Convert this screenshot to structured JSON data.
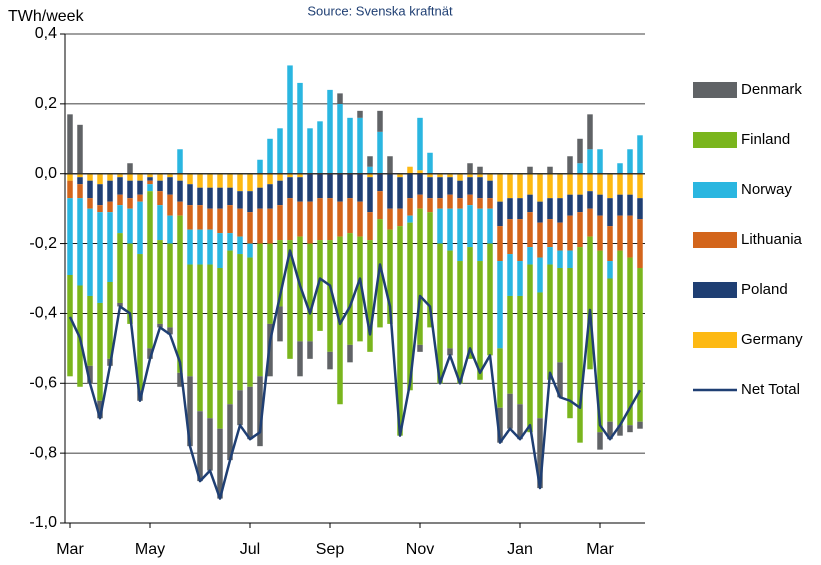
{
  "chart_data": {
    "type": "bar",
    "stacked": true,
    "y_label": "TWh/week",
    "subtitle": "Source: Svenska kraftnät",
    "categories": [
      "Mar",
      null,
      null,
      null,
      null,
      null,
      null,
      null,
      "May",
      null,
      null,
      null,
      null,
      null,
      null,
      null,
      null,
      null,
      "Jul",
      null,
      null,
      null,
      null,
      null,
      null,
      null,
      "Sep",
      null,
      null,
      null,
      null,
      null,
      null,
      null,
      null,
      "Nov",
      null,
      null,
      null,
      null,
      null,
      null,
      null,
      null,
      null,
      "Jan",
      null,
      null,
      null,
      null,
      null,
      null,
      null,
      "Mar",
      null,
      null,
      null,
      null
    ],
    "ylim": [
      -1.0,
      0.4
    ],
    "yticks": [
      {
        "value": 0.4,
        "label": "0,4"
      },
      {
        "value": 0.2,
        "label": "0,2"
      },
      {
        "value": 0,
        "label": "0,0"
      },
      {
        "value": -0.2,
        "label": "-0,2"
      },
      {
        "value": -0.4,
        "label": "-0,4"
      },
      {
        "value": -0.6,
        "label": "-0,6"
      },
      {
        "value": -0.8,
        "label": "-0,8"
      },
      {
        "value": -1.0,
        "label": "-1,0"
      }
    ],
    "grid": true,
    "legend": "right",
    "series": [
      {
        "name": "Denmark",
        "color": "#606366",
        "values": [
          0.17,
          0.14,
          -0.05,
          -0.05,
          -0.02,
          -0.01,
          0.03,
          -0.03,
          -0.03,
          -0.01,
          -0.02,
          -0.04,
          -0.2,
          -0.2,
          -0.15,
          -0.2,
          -0.16,
          -0.1,
          -0.15,
          -0.2,
          -0.15,
          -0.1,
          0,
          -0.1,
          -0.05,
          0,
          -0.05,
          0.03,
          -0.05,
          0.02,
          0.03,
          0.06,
          0.05,
          0,
          0,
          -0.02,
          0,
          0,
          -0.02,
          0,
          0.03,
          0.02,
          0,
          -0.1,
          -0.1,
          -0.1,
          0.02,
          -0.2,
          0.02,
          -0.1,
          0.05,
          0.07,
          0.1,
          -0.05,
          -0.05,
          -0.03,
          -0.02,
          -0.02
        ]
      },
      {
        "name": "Finland",
        "color": "#7ab51d",
        "values": [
          -0.29,
          -0.29,
          -0.2,
          -0.28,
          -0.22,
          -0.2,
          -0.23,
          -0.39,
          -0.45,
          -0.24,
          -0.24,
          -0.45,
          -0.32,
          -0.42,
          -0.44,
          -0.46,
          -0.44,
          -0.39,
          -0.37,
          -0.38,
          -0.23,
          -0.19,
          -0.34,
          -0.3,
          -0.28,
          -0.26,
          -0.32,
          -0.48,
          -0.32,
          -0.3,
          -0.32,
          -0.31,
          -0.27,
          -0.6,
          -0.48,
          -0.39,
          -0.33,
          -0.4,
          -0.28,
          -0.35,
          -0.32,
          -0.34,
          -0.32,
          -0.17,
          -0.28,
          -0.31,
          -0.48,
          -0.36,
          -0.33,
          -0.27,
          -0.43,
          -0.56,
          -0.38,
          -0.52,
          -0.41,
          -0.5,
          -0.48,
          -0.44
        ]
      },
      {
        "name": "Norway",
        "color": "#2ab6e0",
        "values": [
          -0.22,
          -0.25,
          -0.25,
          -0.26,
          -0.2,
          -0.08,
          -0.1,
          -0.15,
          -0.02,
          -0.1,
          -0.08,
          0.07,
          -0.1,
          -0.1,
          -0.1,
          -0.1,
          -0.05,
          -0.05,
          -0.04,
          0.04,
          0.1,
          0.13,
          0.31,
          0.26,
          0.13,
          0.15,
          0.24,
          0.2,
          0.16,
          0.16,
          0.02,
          0.12,
          0,
          0,
          -0.02,
          0.15,
          0.06,
          -0.1,
          -0.12,
          -0.15,
          -0.12,
          -0.15,
          -0.1,
          -0.25,
          -0.12,
          -0.1,
          -0.05,
          -0.1,
          -0.05,
          -0.05,
          -0.05,
          0.03,
          0.07,
          0.07,
          -0.05,
          0.03,
          0.07,
          0.11
        ]
      },
      {
        "name": "Lithuania",
        "color": "#d3651b",
        "values": [
          -0.05,
          -0.04,
          -0.03,
          -0.02,
          -0.03,
          -0.03,
          -0.03,
          -0.02,
          -0.01,
          -0.04,
          -0.06,
          -0.04,
          -0.07,
          -0.07,
          -0.06,
          -0.07,
          -0.08,
          -0.08,
          -0.09,
          -0.1,
          -0.1,
          -0.1,
          -0.12,
          -0.1,
          -0.12,
          -0.12,
          -0.12,
          -0.1,
          -0.1,
          -0.1,
          -0.08,
          -0.08,
          -0.06,
          -0.05,
          -0.05,
          -0.04,
          -0.04,
          -0.03,
          -0.04,
          -0.03,
          -0.03,
          -0.03,
          -0.03,
          -0.1,
          -0.1,
          -0.12,
          -0.1,
          -0.1,
          -0.08,
          -0.08,
          -0.1,
          -0.1,
          -0.08,
          -0.1,
          -0.1,
          -0.1,
          -0.12,
          -0.14
        ]
      },
      {
        "name": "Poland",
        "color": "#1f3f73",
        "values": [
          0,
          -0.02,
          -0.05,
          -0.06,
          -0.06,
          -0.05,
          -0.05,
          -0.04,
          -0.01,
          -0.03,
          -0.05,
          -0.06,
          -0.06,
          -0.05,
          -0.06,
          -0.06,
          -0.05,
          -0.05,
          -0.06,
          -0.06,
          -0.07,
          -0.07,
          -0.06,
          -0.07,
          -0.08,
          -0.07,
          -0.07,
          -0.08,
          -0.07,
          -0.08,
          -0.1,
          -0.05,
          -0.1,
          -0.09,
          -0.07,
          -0.06,
          -0.06,
          -0.06,
          -0.05,
          -0.05,
          -0.05,
          -0.06,
          -0.05,
          -0.07,
          -0.06,
          -0.06,
          -0.05,
          -0.06,
          -0.06,
          -0.07,
          -0.06,
          -0.05,
          -0.05,
          -0.06,
          -0.08,
          -0.06,
          -0.06,
          -0.06
        ]
      },
      {
        "name": "Germany",
        "color": "#fdb913",
        "values": [
          -0.02,
          -0.01,
          -0.02,
          -0.03,
          -0.02,
          -0.01,
          -0.02,
          -0.02,
          -0.01,
          -0.02,
          -0.01,
          -0.02,
          -0.03,
          -0.04,
          -0.04,
          -0.04,
          -0.04,
          -0.05,
          -0.05,
          -0.04,
          -0.03,
          -0.02,
          -0.01,
          -0.01,
          0,
          0,
          0,
          0,
          0,
          0,
          -0.01,
          0,
          0,
          -0.01,
          0.02,
          0.01,
          -0.01,
          -0.01,
          -0.01,
          -0.02,
          -0.01,
          -0.01,
          -0.02,
          -0.08,
          -0.07,
          -0.07,
          -0.06,
          -0.08,
          -0.07,
          -0.07,
          -0.06,
          -0.06,
          -0.05,
          -0.06,
          -0.07,
          -0.06,
          -0.06,
          -0.07
        ]
      },
      {
        "name": "Net Total",
        "color": "#1f3f73",
        "type": "line",
        "values": [
          -0.41,
          -0.47,
          -0.6,
          -0.7,
          -0.55,
          -0.38,
          -0.4,
          -0.65,
          -0.53,
          -0.44,
          -0.46,
          -0.54,
          -0.78,
          -0.88,
          -0.85,
          -0.93,
          -0.82,
          -0.72,
          -0.76,
          -0.74,
          -0.48,
          -0.35,
          -0.22,
          -0.32,
          -0.4,
          -0.3,
          -0.32,
          -0.43,
          -0.38,
          -0.3,
          -0.46,
          -0.26,
          -0.38,
          -0.75,
          -0.6,
          -0.35,
          -0.38,
          -0.6,
          -0.52,
          -0.6,
          -0.5,
          -0.57,
          -0.52,
          -0.77,
          -0.73,
          -0.76,
          -0.72,
          -0.9,
          -0.57,
          -0.64,
          -0.65,
          -0.67,
          -0.39,
          -0.72,
          -0.76,
          -0.72,
          -0.67,
          -0.62
        ]
      }
    ]
  }
}
